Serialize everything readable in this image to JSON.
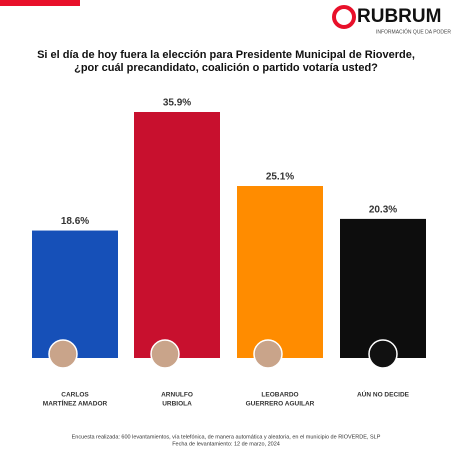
{
  "brand": {
    "name": "RUBRUM",
    "tagline": "INFORMACIÓN QUE DA PODER"
  },
  "chart_data": {
    "type": "bar",
    "title": [
      "Si el día de hoy fuera la elección para Presidente Municipal de Rioverde,",
      "¿por cuál precandidato, coalición o partido votaría usted?"
    ],
    "categories": [
      [
        "CARLOS",
        "MARTÍNEZ AMADOR"
      ],
      [
        "ARNULFO",
        "URBIOLA"
      ],
      [
        "LEOBARDO",
        "GUERRERO AGUILAR"
      ],
      [
        "AÚN NO DECIDE"
      ]
    ],
    "values": [
      18.6,
      35.9,
      25.1,
      20.3
    ],
    "value_labels": [
      "18.6%",
      "35.9%",
      "25.1%",
      "20.3%"
    ],
    "colors": [
      "#1650b8",
      "#c8102e",
      "#ff8c00",
      "#0d0d0d"
    ]
  },
  "footer": [
    "Encuesta realizada: 600 levantamientos, vía telefónica, de manera automática y aleatoria, en el municipio de RIOVERDE, SLP",
    "Fecha de levantamiento: 12 de marzo, 2024"
  ]
}
